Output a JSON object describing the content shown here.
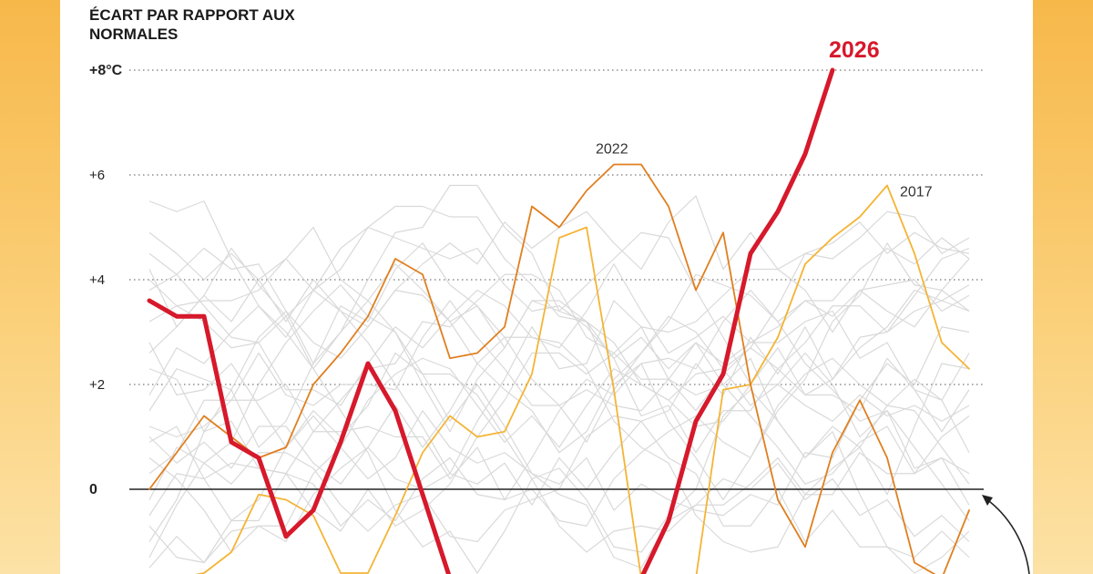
{
  "chart_data": {
    "type": "line",
    "ylabel": "ÉCART PAR RAPPORT AUX NORMALES",
    "yticks": [
      {
        "value": 8,
        "label": "+8°C"
      },
      {
        "value": 6,
        "label": "+6"
      },
      {
        "value": 4,
        "label": "+4"
      },
      {
        "value": 2,
        "label": "+2"
      },
      {
        "value": 0,
        "label": "0"
      }
    ],
    "ylim": [
      -1.7,
      9.3
    ],
    "grid": true,
    "x_count": 31,
    "series": [
      {
        "name": "2026",
        "color": "#d6192b",
        "highlight": true,
        "values": [
          3.6,
          3.3,
          3.3,
          0.9,
          0.6,
          -0.9,
          -0.4,
          0.9,
          2.4,
          1.5,
          -0.1,
          -1.7,
          null,
          null,
          null,
          null,
          null,
          null,
          -1.7,
          -0.6,
          1.3,
          2.2,
          4.5,
          5.3,
          6.4,
          8.0
        ]
      },
      {
        "name": "2022",
        "color": "#e07f1f",
        "values": [
          0.0,
          0.7,
          1.4,
          1.0,
          0.6,
          0.8,
          2.0,
          2.6,
          3.3,
          4.4,
          4.1,
          2.5,
          2.6,
          3.1,
          5.4,
          5.0,
          5.7,
          6.2,
          6.2,
          5.4,
          3.8,
          4.9,
          2.0,
          -0.2,
          -1.1,
          0.7,
          1.7,
          0.6,
          -1.4,
          -1.7,
          -0.4
        ]
      },
      {
        "name": "2017",
        "color": "#f4b436",
        "values": [
          -1.8,
          -1.7,
          -1.6,
          -1.2,
          -0.1,
          -0.2,
          -0.5,
          -1.6,
          -1.6,
          -0.5,
          0.7,
          1.4,
          1.0,
          1.1,
          2.2,
          4.8,
          5.0,
          1.9,
          -1.7,
          -1.7,
          -1.7,
          1.9,
          2.0,
          2.9,
          4.3,
          4.8,
          5.2,
          5.8,
          4.5,
          2.8,
          2.3
        ]
      }
    ],
    "background_series_values": [
      [
        5.5,
        5.3,
        5.5,
        4.4,
        3.5,
        3.0,
        2.3,
        1.5,
        0.7,
        -0.4,
        -1.1,
        -0.8,
        -1.6,
        -0.8,
        0.2,
        0.4,
        -0.2,
        -1.1,
        -1.2,
        -0.5,
        0.0,
        1.4,
        1.9,
        1.3,
        0.6,
        1.2,
        0.8,
        -0.1,
        1.2,
        2.4,
        2.3
      ],
      [
        4.9,
        4.5,
        4.0,
        4.5,
        4.0,
        3.2,
        4.0,
        3.4,
        3.1,
        3.8,
        4.3,
        4.7,
        4.3,
        5.1,
        4.6,
        5.0,
        5.3,
        4.7,
        4.2,
        5.1,
        5.6,
        4.2,
        4.9,
        4.2,
        4.5,
        4.7,
        5.1,
        4.5,
        4.9,
        4.6,
        4.5
      ],
      [
        4.2,
        3.1,
        3.7,
        4.6,
        3.9,
        3.3,
        2.3,
        3.0,
        4.0,
        4.9,
        5.0,
        5.8,
        5.8,
        5.0,
        4.5,
        3.4,
        3.2,
        2.0,
        2.4,
        1.3,
        0.6,
        -0.2,
        0.6,
        1.5,
        2.1,
        3.2,
        3.7,
        4.7,
        3.9,
        3.8,
        3.4
      ],
      [
        1.5,
        2.3,
        2.1,
        1.9,
        2.9,
        3.4,
        2.4,
        3.0,
        3.6,
        4.3,
        3.8,
        3.2,
        3.5,
        2.9,
        2.1,
        1.6,
        0.9,
        1.9,
        2.6,
        3.3,
        3.0,
        2.3,
        1.6,
        2.0,
        1.6,
        1.3,
        1.8,
        1.4,
        1.6,
        1.3,
        1.6
      ],
      [
        0.6,
        0.2,
        -0.4,
        -1.2,
        -0.7,
        -1.0,
        -0.1,
        0.4,
        0.8,
        0.2,
        0.0,
        0.3,
        1.3,
        2.1,
        3.1,
        2.3,
        2.4,
        3.6,
        3.1,
        2.1,
        2.8,
        2.0,
        2.5,
        1.3,
        0.6,
        1.1,
        -0.1,
        -1.1,
        -1.3,
        -0.8,
        -1.3
      ],
      [
        -0.2,
        0.8,
        0.5,
        0.9,
        2.0,
        2.8,
        3.4,
        3.9,
        3.3,
        3.0,
        2.0,
        1.1,
        2.1,
        2.7,
        3.6,
        3.4,
        3.9,
        4.4,
        4.9,
        4.8,
        3.8,
        2.9,
        2.0,
        2.0,
        2.6,
        2.0,
        1.0,
        1.5,
        0.4,
        0.6,
        -0.3
      ],
      [
        2.8,
        1.8,
        1.9,
        2.4,
        1.6,
        0.8,
        1.4,
        0.8,
        0.2,
        0.6,
        1.5,
        0.8,
        0.5,
        0.7,
        0.3,
        0.1,
        0.6,
        -0.4,
        0.1,
        -0.2,
        -0.4,
        -0.5,
        -0.1,
        -0.3,
        0.7,
        0.6,
        1.7,
        2.4,
        2.0,
        3.1,
        3.0
      ],
      [
        -1.0,
        -0.2,
        1.1,
        1.9,
        0.8,
        1.3,
        2.4,
        3.5,
        3.2,
        4.2,
        4.7,
        3.9,
        3.5,
        2.7,
        3.6,
        3.6,
        3.2,
        2.5,
        1.4,
        1.6,
        0.7,
        1.5,
        1.5,
        2.3,
        2.8,
        3.5,
        3.5,
        3.0,
        3.4,
        3.6,
        3.9
      ],
      [
        4.5,
        4.1,
        3.5,
        2.9,
        2.8,
        1.9,
        1.9,
        1.6,
        2.4,
        3.1,
        2.7,
        3.3,
        3.8,
        3.5,
        2.9,
        2.7,
        3.4,
        4.3,
        3.4,
        2.6,
        2.9,
        3.3,
        2.8,
        3.1,
        3.6,
        3.6,
        4.2,
        4.6,
        4.3,
        4.8,
        4.4
      ],
      [
        -1.3,
        -0.3,
        0.5,
        0.1,
        0.7,
        0.7,
        0.4,
        -0.3,
        -0.8,
        -0.3,
        -0.1,
        -0.9,
        -1.0,
        -0.4,
        -0.2,
        0.0,
        1.0,
        1.4,
        1.3,
        1.5,
        2.4,
        1.8,
        2.9,
        2.2,
        3.1,
        2.1,
        2.7,
        3.1,
        3.8,
        3.6,
        3.4
      ],
      [
        1.8,
        2.7,
        2.4,
        3.0,
        3.5,
        2.9,
        3.8,
        3.4,
        2.8,
        2.0,
        1.2,
        0.3,
        0.1,
        0.5,
        -0.3,
        0.6,
        0.0,
        0.7,
        1.3,
        0.6,
        0.3,
        -0.7,
        -0.7,
        0.0,
        -1.0,
        -0.4,
        -1.1,
        -1.1,
        -1.6,
        -1.3,
        -0.8
      ],
      [
        3.2,
        3.5,
        3.6,
        3.6,
        3.8,
        4.4,
        3.8,
        4.6,
        5.0,
        4.8,
        4.6,
        4.4,
        4.6,
        3.9,
        3.4,
        3.5,
        3.1,
        2.5,
        2.9,
        2.3,
        2.8,
        2.4,
        2.8,
        2.8,
        3.2,
        3.4,
        2.5,
        2.8,
        1.9,
        1.7,
        2.6
      ],
      [
        0.9,
        1.2,
        0.2,
        -0.6,
        -0.2,
        0.8,
        1.5,
        1.0,
        1.6,
        2.6,
        2.2,
        1.3,
        2.0,
        1.2,
        0.3,
        -0.1,
        -0.3,
        -1.3,
        -1.5,
        -0.6,
        -0.3,
        -0.3,
        0.1,
        0.6,
        -0.1,
        0.4,
        0.8,
        1.6,
        1.5,
        0.8,
        0.1
      ],
      [
        -0.7,
        -1.3,
        -1.4,
        -0.8,
        -0.7,
        -0.7,
        0.3,
        0.8,
        1.7,
        2.2,
        2.5,
        2.3,
        1.6,
        0.9,
        1.4,
        0.8,
        1.6,
        2.3,
        2.0,
        1.7,
        1.2,
        1.3,
        2.0,
        2.7,
        1.8,
        1.8,
        1.5,
        2.5,
        1.9,
        1.1,
        1.9
      ],
      [
        2.3,
        2.1,
        1.1,
        1.3,
        0.4,
        0.3,
        1.1,
        1.1,
        1.2,
        1.0,
        1.0,
        0.2,
        0.8,
        -0.2,
        0.0,
        -0.6,
        -0.7,
        0.2,
        0.7,
        1.1,
        1.4,
        0.9,
        0.6,
        1.6,
        2.2,
        2.5,
        2.0,
        1.6,
        2.1,
        1.7,
        0.7
      ],
      [
        3.8,
        4.1,
        4.6,
        4.2,
        4.3,
        3.4,
        2.8,
        2.5,
        3.1,
        3.8,
        3.7,
        3.2,
        2.4,
        2.9,
        2.9,
        2.8,
        2.3,
        1.3,
        0.8,
        0.5,
        -0.5,
        -1.0,
        -1.2,
        -1.1,
        -0.1,
        -0.1,
        0.7,
        0.3,
        0.3,
        0.6,
        0.3
      ],
      [
        1.2,
        1.0,
        1.2,
        1.7,
        2.6,
        1.8,
        1.6,
        2.0,
        2.0,
        1.9,
        2.9,
        3.6,
        2.9,
        2.3,
        1.6,
        1.6,
        1.9,
        1.6,
        1.5,
        2.1,
        1.5,
        2.2,
        2.7,
        3.5,
        4.5,
        4.4,
        4.8,
        5.3,
        5.2,
        4.5,
        4.8
      ],
      [
        -0.5,
        0.3,
        0.2,
        0.5,
        0.4,
        0.3,
        -0.4,
        -0.8,
        0.0,
        -0.7,
        -0.4,
        0.1,
        1.0,
        1.7,
        2.6,
        2.6,
        2.2,
        2.6,
        3.1,
        3.0,
        3.2,
        3.7,
        4.2,
        4.2,
        3.8,
        3.0,
        3.8,
        3.9,
        4.0,
        3.4,
        3.7
      ],
      [
        2.6,
        3.1,
        3.7,
        3.2,
        4.0,
        4.4,
        5.0,
        4.0,
        3.6,
        3.0,
        2.2,
        2.2,
        1.8,
        1.0,
        0.2,
        -0.7,
        -1.2,
        -0.8,
        -0.7,
        -0.8,
        -0.3,
        0.2,
        0.0,
        0.5,
        -0.2,
        0.2,
        -0.5,
        -0.2,
        -0.9,
        -0.5,
        -1.0
      ],
      [
        0.3,
        0.7,
        1.7,
        1.7,
        1.7,
        2.0,
        1.1,
        1.7,
        2.3,
        2.4,
        3.2,
        3.1,
        3.6,
        4.1,
        4.1,
        3.8,
        2.9,
        2.6,
        2.1,
        2.1,
        1.8,
        2.0,
        1.4,
        0.8,
        0.1,
        0.3,
        0.9,
        1.2,
        0.3,
        1.0,
        1.4
      ],
      [
        -1.5,
        -0.9,
        -1.4,
        -0.6,
        -0.6,
        0.3,
        0.1,
        -0.7,
        -0.2,
        -0.6,
        0.2,
        0.6,
        -0.1,
        -0.2,
        0.6,
        1.5,
        2.1,
        1.8,
        2.4,
        2.5,
        2.3,
        3.2,
        3.8,
        3.2,
        2.4,
        1.9,
        1.3,
        1.5,
        0.8,
        0.1,
        -0.6
      ],
      [
        4.0,
        3.5,
        3.2,
        2.7,
        2.8,
        3.3,
        3.8,
        4.2,
        5.0,
        5.4,
        5.4,
        5.2,
        5.2,
        4.4,
        3.9,
        3.3,
        3.2,
        2.8,
        2.0,
        1.7,
        2.2,
        2.3,
        2.7,
        2.3,
        1.8,
        2.1,
        2.9,
        3.0,
        3.7,
        4.4,
        4.6
      ],
      [
        1.0,
        0.5,
        0.9,
        0.4,
        1.2,
        1.2,
        0.5,
        0.1,
        0.8,
        1.6,
        0.8,
        1.5,
        2.4,
        1.9,
        1.5,
        0.7,
        1.1,
        2.1,
        2.6,
        3.2,
        4.1,
        3.9,
        3.7,
        3.2,
        3.6,
        3.3,
        3.8,
        3.4,
        3.1,
        3.8,
        4.4
      ]
    ],
    "annotations": [
      {
        "text": "2022",
        "series": "2022"
      },
      {
        "text": "2017",
        "series": "2017"
      },
      {
        "text": "2026",
        "series": "2026"
      }
    ]
  }
}
